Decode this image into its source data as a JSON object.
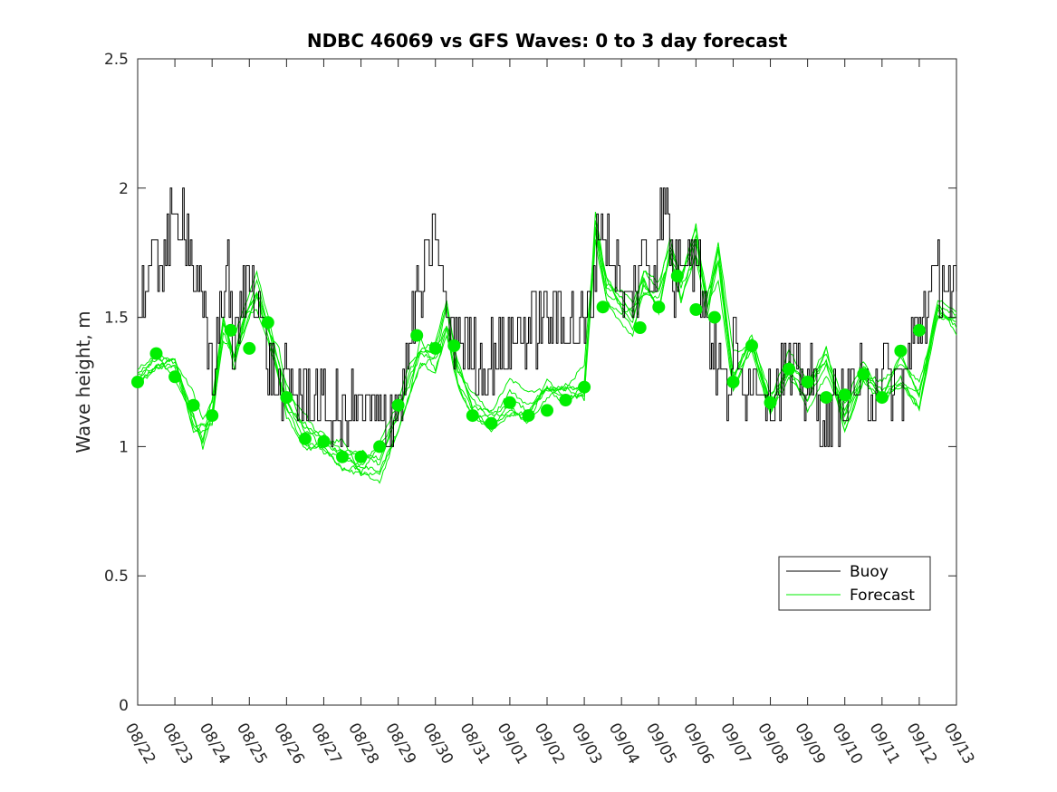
{
  "chart_data": {
    "type": "line",
    "title": "NDBC 46069 vs GFS Waves: 0 to 3 day forecast",
    "xlabel": "",
    "ylabel": "Wave height, m",
    "ylim": [
      0,
      2.5
    ],
    "yticks": [
      0,
      0.5,
      1,
      1.5,
      2,
      2.5
    ],
    "yticklabels": [
      "0",
      "0.5",
      "1",
      "1.5",
      "2",
      "2.5"
    ],
    "xlim": [
      0,
      22
    ],
    "xticks": [
      0,
      1,
      2,
      3,
      4,
      5,
      6,
      7,
      8,
      9,
      10,
      11,
      12,
      13,
      14,
      15,
      16,
      17,
      18,
      19,
      20,
      21,
      22
    ],
    "xticklabels": [
      "08/22",
      "08/23",
      "08/24",
      "08/25",
      "08/26",
      "08/27",
      "08/28",
      "08/29",
      "08/30",
      "08/31",
      "09/01",
      "09/02",
      "09/03",
      "09/04",
      "09/05",
      "09/06",
      "09/07",
      "09/08",
      "09/09",
      "09/10",
      "09/11",
      "09/12",
      "09/13"
    ],
    "legend": {
      "location": "lower-right",
      "entries": [
        "Buoy",
        "Forecast"
      ]
    },
    "colors": {
      "buoy": "#000000",
      "forecast": "#00ee00",
      "axis": "#262626",
      "background": "#ffffff"
    },
    "buoy_key_points": {
      "x": [
        0,
        0.2,
        0.4,
        0.6,
        0.8,
        1.0,
        1.2,
        1.4,
        1.6,
        1.8,
        2.0,
        2.2,
        2.4,
        2.6,
        2.8,
        3.0,
        3.2,
        3.4,
        3.6,
        3.8,
        4.0,
        4.3,
        4.6,
        5.0,
        5.5,
        6.0,
        6.5,
        7.0,
        7.2,
        7.4,
        7.6,
        7.8,
        8.0,
        8.2,
        8.4,
        8.6,
        8.8,
        9.0,
        9.3,
        9.6,
        10.0,
        10.5,
        11.0,
        11.5,
        12.0,
        12.2,
        12.4,
        12.6,
        12.8,
        13.0,
        13.2,
        13.4,
        13.6,
        13.8,
        14.0,
        14.2,
        14.4,
        14.6,
        14.8,
        15.0,
        15.2,
        15.4,
        15.6,
        15.8,
        16.0,
        16.3,
        16.6,
        17.0,
        17.4,
        17.8,
        18.2,
        18.6,
        19.0,
        19.3,
        19.6,
        20.0,
        20.3,
        20.6,
        21.0,
        21.3,
        21.6,
        22.0
      ],
      "y": [
        1.5,
        1.6,
        1.7,
        1.75,
        1.8,
        1.85,
        1.9,
        1.8,
        1.6,
        1.45,
        1.3,
        1.5,
        1.7,
        1.35,
        1.55,
        1.7,
        1.6,
        1.4,
        1.3,
        1.2,
        1.25,
        1.2,
        1.2,
        1.15,
        1.1,
        1.15,
        1.1,
        1.15,
        1.3,
        1.5,
        1.6,
        1.7,
        1.85,
        1.6,
        1.4,
        1.45,
        1.4,
        1.35,
        1.3,
        1.35,
        1.4,
        1.45,
        1.5,
        1.5,
        1.45,
        1.6,
        1.9,
        1.8,
        1.7,
        1.6,
        1.55,
        1.65,
        1.75,
        1.6,
        1.9,
        1.95,
        1.6,
        1.75,
        1.85,
        1.7,
        1.6,
        1.4,
        1.3,
        1.2,
        1.35,
        1.25,
        1.3,
        1.2,
        1.3,
        1.25,
        1.2,
        1.1,
        1.2,
        1.25,
        1.2,
        1.3,
        1.2,
        1.25,
        1.5,
        1.6,
        1.65,
        1.55
      ]
    },
    "forecast_markers": {
      "x": [
        0,
        0.5,
        1,
        1.5,
        2,
        2.5,
        3,
        3.5,
        4,
        4.5,
        5,
        5.5,
        6,
        6.5,
        7,
        7.5,
        8,
        8.5,
        9,
        9.5,
        10,
        10.5,
        11,
        11.5,
        12,
        12.5,
        13,
        13.5,
        14,
        14.5,
        15,
        15.5,
        16,
        16.5,
        17,
        17.5,
        18,
        18.5,
        19,
        19.5,
        20,
        20.5,
        21
      ],
      "y": [
        1.25,
        1.36,
        1.27,
        1.16,
        1.12,
        1.45,
        1.38,
        1.48,
        1.19,
        1.03,
        1.02,
        0.96,
        0.96,
        1.0,
        1.16,
        1.43,
        1.38,
        1.39,
        1.12,
        1.09,
        1.17,
        1.12,
        1.14,
        1.18,
        1.23,
        1.54,
        null,
        1.46,
        1.54,
        1.66,
        1.53,
        1.5,
        1.25,
        1.39,
        1.17,
        1.3,
        1.25,
        1.19,
        1.2,
        1.28,
        1.19,
        1.37,
        1.45
      ]
    },
    "forecast_key_points": {
      "x": [
        0,
        0.5,
        1.0,
        1.5,
        1.75,
        2.0,
        2.3,
        2.6,
        2.9,
        3.2,
        3.5,
        3.8,
        4.0,
        4.5,
        5.0,
        5.5,
        6.0,
        6.5,
        7.0,
        7.3,
        7.6,
        8.0,
        8.3,
        8.6,
        9.0,
        9.5,
        10.0,
        10.5,
        11.0,
        11.5,
        12.0,
        12.3,
        12.6,
        13.0,
        13.3,
        13.6,
        14.0,
        14.3,
        14.6,
        15.0,
        15.3,
        15.6,
        16.0,
        16.5,
        17.0,
        17.5,
        18.0,
        18.5,
        19.0,
        19.5,
        20.0,
        20.5,
        21.0,
        21.5,
        22.0
      ],
      "y": [
        1.25,
        1.35,
        1.28,
        1.12,
        1.05,
        1.12,
        1.48,
        1.35,
        1.5,
        1.6,
        1.45,
        1.3,
        1.18,
        1.06,
        1.0,
        0.96,
        0.93,
        0.95,
        1.1,
        1.25,
        1.38,
        1.35,
        1.5,
        1.3,
        1.15,
        1.12,
        1.18,
        1.14,
        1.2,
        1.2,
        1.25,
        1.85,
        1.6,
        1.55,
        1.5,
        1.65,
        1.55,
        1.75,
        1.6,
        1.8,
        1.55,
        1.72,
        1.3,
        1.38,
        1.15,
        1.3,
        1.2,
        1.35,
        1.1,
        1.3,
        1.2,
        1.3,
        1.2,
        1.5,
        1.48
      ]
    }
  }
}
